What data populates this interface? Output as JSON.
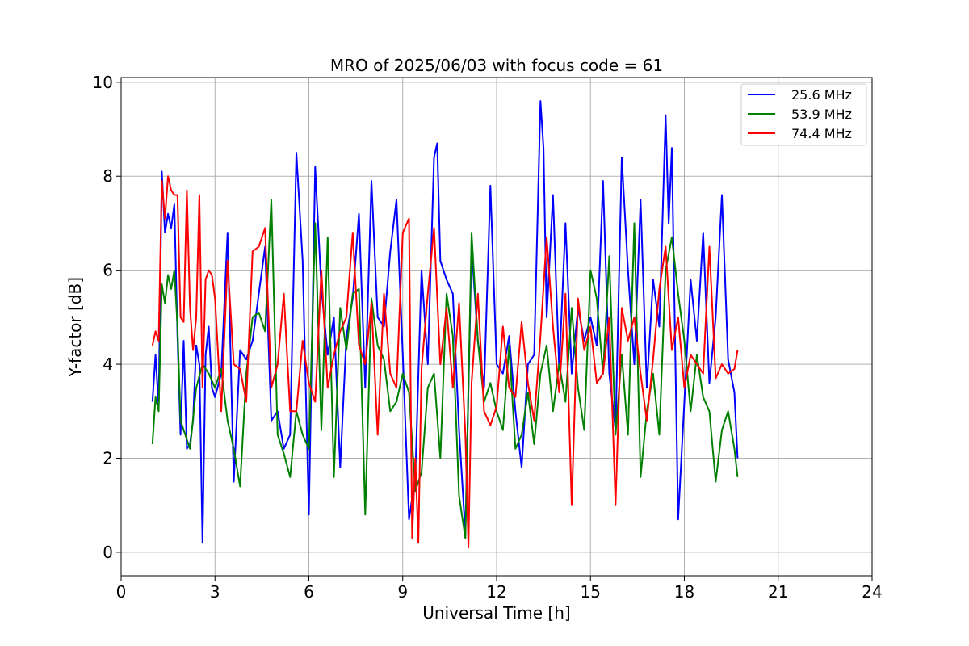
{
  "chart_data": {
    "type": "line",
    "title": "MRO of 2025/06/03 with focus code = 61",
    "xlabel": "Universal Time [h]",
    "ylabel": "Y-factor [dB]",
    "xlim": [
      0,
      24
    ],
    "ylim": [
      -0.5,
      10.1
    ],
    "xticks": [
      0,
      3,
      6,
      9,
      12,
      15,
      18,
      21,
      24
    ],
    "xtick_labels": [
      "0",
      "3",
      "6",
      "9",
      "12",
      "15",
      "18",
      "21",
      "24"
    ],
    "yticks": [
      0,
      2,
      4,
      6,
      8,
      10
    ],
    "ytick_labels": [
      "0",
      "2",
      "4",
      "6",
      "8",
      "10"
    ],
    "grid": true,
    "legend_position": "top-right",
    "series": [
      {
        "name": "25.6 MHz",
        "color": "#0000ff",
        "x": [
          1.0,
          1.1,
          1.2,
          1.3,
          1.4,
          1.5,
          1.6,
          1.7,
          1.8,
          1.9,
          2.0,
          2.1,
          2.2,
          2.3,
          2.4,
          2.5,
          2.6,
          2.7,
          2.8,
          2.9,
          3.0,
          3.2,
          3.4,
          3.6,
          3.8,
          4.0,
          4.2,
          4.4,
          4.6,
          4.8,
          5.0,
          5.2,
          5.4,
          5.6,
          5.8,
          6.0,
          6.2,
          6.4,
          6.6,
          6.8,
          7.0,
          7.2,
          7.4,
          7.6,
          7.8,
          8.0,
          8.2,
          8.4,
          8.6,
          8.8,
          9.0,
          9.2,
          9.4,
          9.6,
          9.8,
          10.0,
          10.1,
          10.2,
          10.4,
          10.6,
          10.8,
          11.0,
          11.2,
          11.4,
          11.6,
          11.8,
          12.0,
          12.2,
          12.4,
          12.6,
          12.8,
          13.0,
          13.2,
          13.4,
          13.5,
          13.6,
          13.8,
          14.0,
          14.2,
          14.4,
          14.6,
          14.8,
          15.0,
          15.2,
          15.4,
          15.6,
          15.8,
          16.0,
          16.2,
          16.4,
          16.6,
          16.8,
          17.0,
          17.2,
          17.4,
          17.5,
          17.6,
          17.7,
          17.8,
          18.0,
          18.2,
          18.4,
          18.6,
          18.8,
          19.0,
          19.2,
          19.4,
          19.6,
          19.7
        ],
        "y": [
          3.2,
          4.2,
          3.1,
          8.1,
          6.8,
          7.2,
          6.9,
          7.4,
          4.6,
          2.5,
          4.5,
          2.2,
          2.3,
          2.8,
          4.4,
          4.0,
          0.2,
          4.2,
          4.8,
          3.5,
          3.3,
          3.8,
          6.8,
          1.5,
          4.3,
          4.1,
          4.5,
          5.5,
          6.5,
          2.8,
          3.0,
          2.2,
          2.5,
          8.5,
          6.2,
          0.8,
          8.2,
          5.6,
          4.2,
          5.0,
          1.8,
          4.6,
          5.4,
          7.2,
          3.5,
          7.9,
          5.0,
          4.8,
          6.4,
          7.5,
          4.2,
          0.7,
          1.6,
          6.0,
          4.0,
          8.4,
          8.7,
          6.2,
          5.8,
          5.5,
          2.6,
          0.4,
          6.5,
          4.5,
          3.5,
          7.8,
          4.0,
          3.8,
          4.6,
          3.0,
          1.8,
          4.0,
          4.2,
          9.6,
          8.6,
          5.0,
          7.6,
          3.9,
          7.0,
          3.8,
          5.2,
          4.5,
          5.0,
          4.4,
          7.9,
          3.8,
          2.6,
          8.4,
          6.0,
          4.0,
          7.5,
          3.5,
          5.8,
          4.8,
          9.3,
          7.0,
          8.6,
          4.6,
          0.7,
          3.2,
          5.8,
          4.5,
          6.8,
          3.6,
          5.0,
          7.6,
          4.1,
          3.4,
          2.0
        ]
      },
      {
        "name": "53.9 MHz",
        "color": "#008000",
        "x": [
          1.0,
          1.1,
          1.2,
          1.3,
          1.4,
          1.5,
          1.6,
          1.7,
          1.8,
          1.9,
          2.0,
          2.2,
          2.4,
          2.6,
          2.8,
          3.0,
          3.2,
          3.4,
          3.6,
          3.8,
          4.0,
          4.2,
          4.4,
          4.6,
          4.8,
          5.0,
          5.2,
          5.4,
          5.6,
          5.8,
          6.0,
          6.2,
          6.4,
          6.6,
          6.8,
          7.0,
          7.2,
          7.4,
          7.6,
          7.8,
          8.0,
          8.2,
          8.4,
          8.6,
          8.8,
          9.0,
          9.2,
          9.4,
          9.6,
          9.8,
          10.0,
          10.2,
          10.4,
          10.6,
          10.8,
          11.0,
          11.2,
          11.4,
          11.6,
          11.8,
          12.0,
          12.2,
          12.4,
          12.6,
          12.8,
          13.0,
          13.2,
          13.4,
          13.6,
          13.8,
          14.0,
          14.2,
          14.4,
          14.6,
          14.8,
          15.0,
          15.2,
          15.4,
          15.6,
          15.8,
          16.0,
          16.2,
          16.4,
          16.6,
          16.8,
          17.0,
          17.2,
          17.4,
          17.6,
          17.8,
          18.0,
          18.2,
          18.4,
          18.6,
          18.8,
          19.0,
          19.2,
          19.4,
          19.6,
          19.7
        ],
        "y": [
          2.3,
          3.3,
          3.0,
          5.7,
          5.3,
          5.9,
          5.6,
          6.0,
          4.8,
          2.8,
          2.6,
          2.2,
          3.5,
          4.0,
          3.8,
          3.5,
          3.9,
          2.8,
          2.2,
          1.4,
          3.8,
          5.0,
          5.1,
          4.7,
          7.5,
          2.5,
          2.1,
          1.6,
          3.0,
          2.5,
          2.2,
          7.0,
          2.6,
          6.7,
          1.6,
          5.2,
          4.3,
          5.5,
          5.6,
          0.8,
          5.4,
          4.4,
          4.1,
          3.0,
          3.2,
          3.8,
          3.4,
          1.3,
          1.7,
          3.5,
          3.8,
          2.0,
          5.5,
          4.6,
          1.2,
          0.3,
          6.8,
          4.5,
          3.2,
          3.6,
          3.0,
          2.6,
          4.4,
          2.2,
          2.5,
          3.4,
          2.3,
          3.8,
          4.4,
          3.0,
          4.0,
          3.2,
          5.2,
          3.5,
          2.6,
          6.0,
          5.4,
          3.8,
          6.3,
          2.5,
          4.2,
          2.5,
          7.0,
          1.6,
          3.0,
          3.8,
          2.5,
          6.0,
          6.7,
          5.5,
          4.5,
          3.0,
          4.2,
          3.3,
          3.0,
          1.5,
          2.6,
          3.0,
          2.2,
          1.6
        ]
      },
      {
        "name": "74.4 MHz",
        "color": "#ff0000",
        "x": [
          1.0,
          1.1,
          1.2,
          1.3,
          1.4,
          1.5,
          1.6,
          1.7,
          1.8,
          1.9,
          2.0,
          2.1,
          2.2,
          2.3,
          2.4,
          2.5,
          2.6,
          2.7,
          2.8,
          2.9,
          3.0,
          3.2,
          3.4,
          3.6,
          3.8,
          4.0,
          4.2,
          4.4,
          4.6,
          4.8,
          5.0,
          5.2,
          5.4,
          5.6,
          5.8,
          6.0,
          6.2,
          6.4,
          6.6,
          6.8,
          7.0,
          7.2,
          7.4,
          7.6,
          7.8,
          8.0,
          8.2,
          8.4,
          8.6,
          8.8,
          9.0,
          9.2,
          9.3,
          9.4,
          9.5,
          9.6,
          9.8,
          10.0,
          10.2,
          10.4,
          10.6,
          10.8,
          11.0,
          11.1,
          11.2,
          11.4,
          11.6,
          11.8,
          12.0,
          12.2,
          12.4,
          12.6,
          12.8,
          13.0,
          13.2,
          13.4,
          13.6,
          13.8,
          14.0,
          14.2,
          14.4,
          14.6,
          14.8,
          15.0,
          15.2,
          15.4,
          15.6,
          15.8,
          16.0,
          16.2,
          16.4,
          16.6,
          16.8,
          17.0,
          17.2,
          17.4,
          17.6,
          17.8,
          18.0,
          18.2,
          18.4,
          18.6,
          18.8,
          19.0,
          19.2,
          19.4,
          19.6,
          19.7
        ],
        "y": [
          4.4,
          4.7,
          4.5,
          7.9,
          7.1,
          8.0,
          7.7,
          7.6,
          7.6,
          5.0,
          4.9,
          7.7,
          5.2,
          4.3,
          5.0,
          7.6,
          3.5,
          5.8,
          6.0,
          5.9,
          5.4,
          3.0,
          6.2,
          4.0,
          3.9,
          3.2,
          6.4,
          6.5,
          6.9,
          3.5,
          4.0,
          5.5,
          3.0,
          3.0,
          4.5,
          3.6,
          3.2,
          6.0,
          3.5,
          4.2,
          4.7,
          5.0,
          6.8,
          4.4,
          4.0,
          5.3,
          2.5,
          5.5,
          3.8,
          3.5,
          6.8,
          7.1,
          0.3,
          2.0,
          0.2,
          3.9,
          5.5,
          6.9,
          4.0,
          5.2,
          3.5,
          5.3,
          2.5,
          0.1,
          3.6,
          5.5,
          3.0,
          2.7,
          3.1,
          4.8,
          3.5,
          3.3,
          4.9,
          3.6,
          2.8,
          4.6,
          6.7,
          4.8,
          3.4,
          5.5,
          1.0,
          5.4,
          4.3,
          4.8,
          3.6,
          3.8,
          5.0,
          1.0,
          5.2,
          4.5,
          5.0,
          3.8,
          2.8,
          4.1,
          5.6,
          6.5,
          4.3,
          5.0,
          3.5,
          4.2,
          4.0,
          3.8,
          6.5,
          3.7,
          4.0,
          3.8,
          3.9,
          4.3
        ]
      }
    ]
  }
}
